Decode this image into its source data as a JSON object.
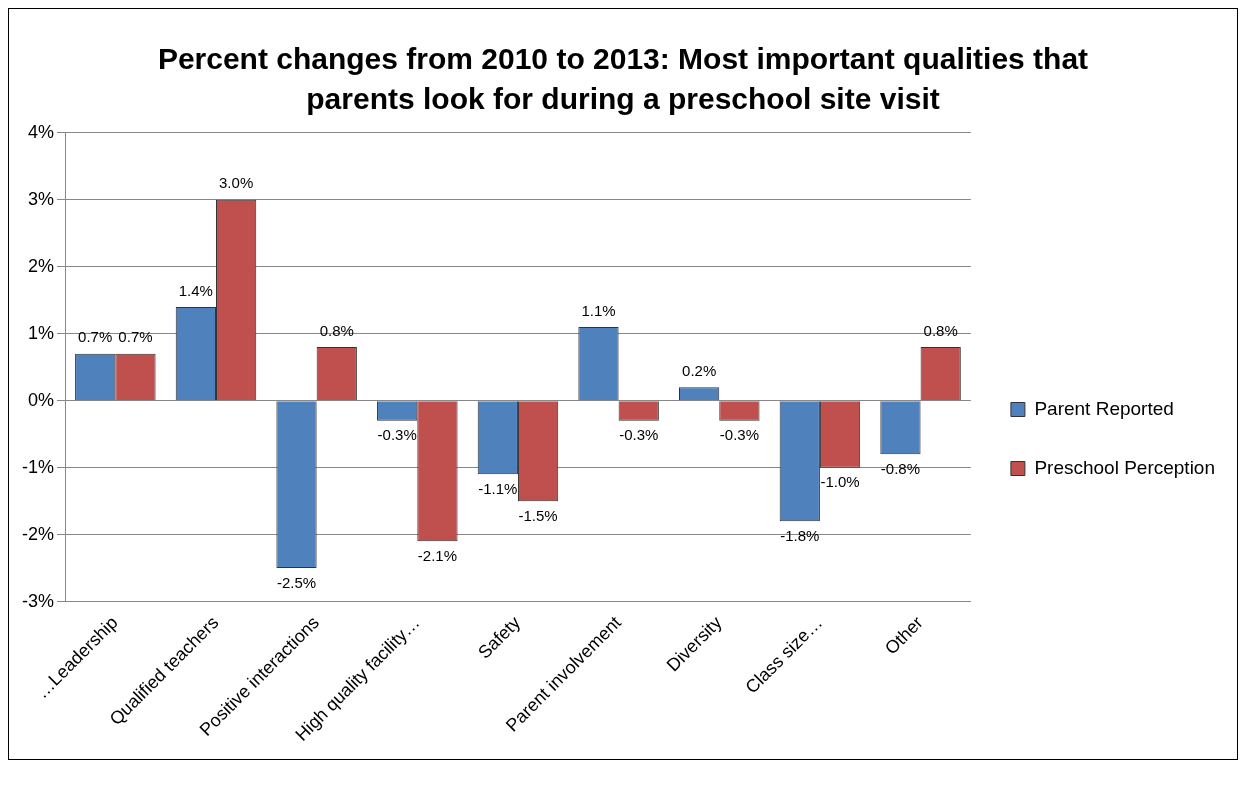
{
  "chart_data": {
    "type": "bar",
    "title": "Percent changes from 2010 to 2013:  Most important qualities that parents look for during a preschool site visit",
    "categories": [
      "…Leadership",
      "Qualified teachers",
      "Positive interactions",
      "High quality facility…",
      "Safety",
      "Parent involvement",
      "Diversity",
      "Class size…",
      "Other"
    ],
    "series": [
      {
        "name": "Parent Reported",
        "color": "#4f81bd",
        "values": [
          0.7,
          1.4,
          -2.5,
          -0.3,
          -1.1,
          1.1,
          0.2,
          -1.8,
          -0.8
        ],
        "value_labels": [
          "0.7%",
          "1.4%",
          "-2.5%",
          "-0.3%",
          "-1.1%",
          "1.1%",
          "0.2%",
          "-1.8%",
          "-0.8%"
        ]
      },
      {
        "name": "Preschool Perception",
        "color": "#c0504d",
        "values": [
          0.7,
          3.0,
          0.8,
          -2.1,
          -1.5,
          -0.3,
          -0.3,
          -1.0,
          0.8
        ],
        "value_labels": [
          "0.7%",
          "3.0%",
          "0.8%",
          "-2.1%",
          "-1.5%",
          "-0.3%",
          "-0.3%",
          "-1.0%",
          "0.8%"
        ]
      }
    ],
    "ylim": [
      -3,
      4
    ],
    "yticks": [
      {
        "value": -3,
        "label": "-3%"
      },
      {
        "value": -2,
        "label": "-2%"
      },
      {
        "value": -1,
        "label": "-1%"
      },
      {
        "value": 0,
        "label": "0%"
      },
      {
        "value": 1,
        "label": "1%"
      },
      {
        "value": 2,
        "label": "2%"
      },
      {
        "value": 3,
        "label": "3%"
      },
      {
        "value": 4,
        "label": "4%"
      }
    ],
    "grid": "y",
    "legend": "right"
  }
}
